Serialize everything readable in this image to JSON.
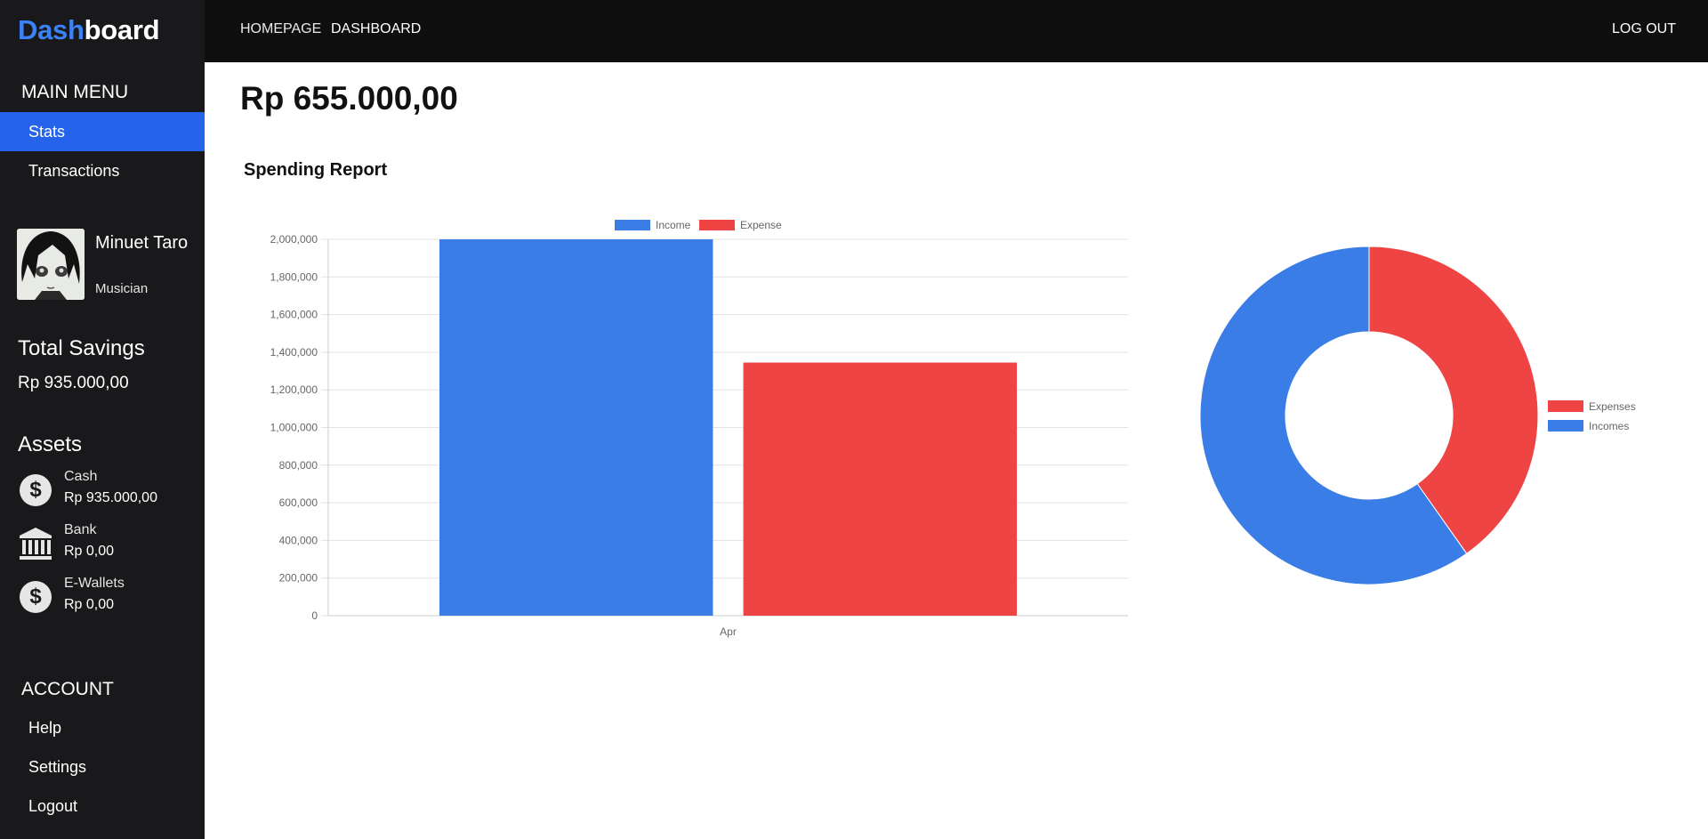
{
  "brand": {
    "accent": "Dash",
    "rest": "board"
  },
  "topbar": {
    "links": [
      "HOMEPAGE",
      "DASHBOARD"
    ],
    "logout": "LOG OUT"
  },
  "sidebar": {
    "main_menu_title": "MAIN MENU",
    "main_items": [
      "Stats",
      "Transactions"
    ],
    "active_item": "Stats",
    "profile": {
      "name": "Minuet Taro",
      "role": "Musician"
    },
    "savings": {
      "title": "Total Savings",
      "value": "Rp 935.000,00"
    },
    "assets": {
      "title": "Assets",
      "items": [
        {
          "icon": "dollar-coin-icon",
          "label": "Cash",
          "value": "Rp 935.000,00"
        },
        {
          "icon": "bank-icon",
          "label": "Bank",
          "value": "Rp 0,00"
        },
        {
          "icon": "dollar-coin-icon",
          "label": "E-Wallets",
          "value": "Rp 0,00"
        }
      ]
    },
    "account_title": "ACCOUNT",
    "account_items": [
      "Help",
      "Settings",
      "Logout"
    ]
  },
  "main": {
    "balance": "Rp 655.000,00",
    "report_title": "Spending Report"
  },
  "colors": {
    "income": "#3b7de6",
    "expense": "#ef4444",
    "active": "#2563eb",
    "sidebar": "#19191b",
    "topbar": "#0f0f0f"
  },
  "chart_data": [
    {
      "type": "bar",
      "categories": [
        "Apr"
      ],
      "series": [
        {
          "name": "Income",
          "values": [
            2000000
          ],
          "color": "#3b7de6"
        },
        {
          "name": "Expense",
          "values": [
            1345000
          ],
          "color": "#ef4444"
        }
      ],
      "ylim": [
        0,
        2000000
      ],
      "yticks": [
        "2,000,000",
        "1,800,000",
        "1,600,000",
        "1,400,000",
        "1,200,000",
        "1,000,000",
        "800,000",
        "600,000",
        "400,000",
        "200,000",
        "0"
      ],
      "legend": "top",
      "grid": true
    },
    {
      "type": "pie",
      "donut": true,
      "labels": [
        "Expenses",
        "Incomes"
      ],
      "values": [
        1345000,
        2000000
      ],
      "colors": [
        "#ef4444",
        "#3b7de6"
      ],
      "legend": "right"
    }
  ]
}
